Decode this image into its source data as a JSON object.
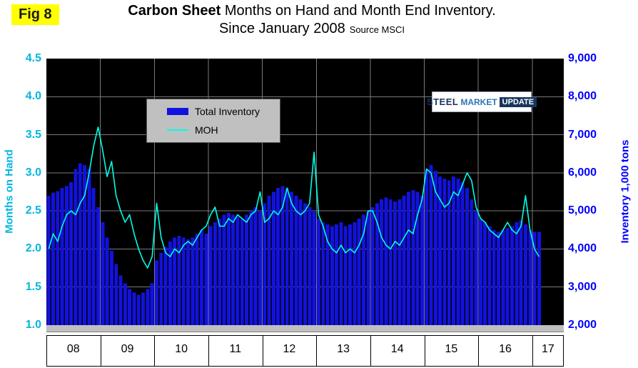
{
  "fig_label": "Fig 8",
  "title": {
    "bold": "Carbon Sheet",
    "rest": " Months on Hand and Month End Inventory.",
    "line2": "Since January 2008",
    "source": "Source MSCI"
  },
  "legend": {
    "inventory": "Total Inventory",
    "moh": "MOH"
  },
  "logo": {
    "part1": "STEEL",
    "part2": "MARKET",
    "part3": "UPDATE"
  },
  "left_axis": {
    "title": "Months on Hand",
    "color": "#00B7DE",
    "ticks": [
      "4.5",
      "4.0",
      "3.5",
      "3.0",
      "2.5",
      "2.0",
      "1.5",
      "1.0"
    ]
  },
  "right_axis": {
    "title": "Inventory 1,000 tons",
    "color": "#0000FF",
    "ticks": [
      "9,000",
      "8,000",
      "7,000",
      "6,000",
      "5,000",
      "4,000",
      "3,000",
      "2,000"
    ]
  },
  "chart_data": {
    "type": "bar",
    "subtype": "combo-bar-line-dual-axis",
    "title": "Carbon Sheet Months on Hand and Month End Inventory. Since January 2008",
    "source": "Source MSCI",
    "x_frequency": "monthly",
    "x_start": "2008-01",
    "x_years": [
      "08",
      "09",
      "10",
      "11",
      "12",
      "13",
      "14",
      "15",
      "16",
      "17"
    ],
    "x_slots": 115,
    "left_ylim": [
      1.0,
      4.5
    ],
    "right_ylim": [
      2000,
      9000
    ],
    "grid": true,
    "legend_position": "upper-left-inside",
    "series": [
      {
        "name": "Total Inventory",
        "type": "bar",
        "axis": "right",
        "units": "1,000 tons",
        "values": [
          5400,
          5480,
          5520,
          5600,
          5650,
          5750,
          6100,
          6250,
          6200,
          6100,
          5600,
          5100,
          4700,
          4300,
          3950,
          3600,
          3300,
          3100,
          2950,
          2850,
          2800,
          2850,
          2950,
          3100,
          3700,
          3900,
          4050,
          4200,
          4300,
          4350,
          4300,
          4250,
          4300,
          4400,
          4500,
          4400,
          4600,
          4700,
          4800,
          4900,
          4950,
          4900,
          4850,
          4800,
          4900,
          5000,
          5100,
          5000,
          5200,
          5400,
          5500,
          5600,
          5650,
          5600,
          5500,
          5400,
          5300,
          5200,
          5100,
          5000,
          4800,
          4700,
          4650,
          4600,
          4650,
          4700,
          4600,
          4650,
          4700,
          4800,
          4900,
          5000,
          5100,
          5200,
          5300,
          5350,
          5300,
          5250,
          5300,
          5400,
          5500,
          5550,
          5500,
          5400,
          6100,
          6200,
          6050,
          5900,
          5850,
          5800,
          5900,
          5850,
          5750,
          5600,
          5300,
          5000,
          4800,
          4700,
          4600,
          4500,
          4450,
          4500,
          4550,
          4600,
          4700,
          4750,
          4650,
          4500,
          4450,
          4450
        ]
      },
      {
        "name": "MOH",
        "type": "line",
        "axis": "left",
        "units": "months",
        "values": [
          2.0,
          2.2,
          2.1,
          2.3,
          2.45,
          2.5,
          2.45,
          2.6,
          2.7,
          3.0,
          3.35,
          3.6,
          3.3,
          2.95,
          3.15,
          2.7,
          2.5,
          2.35,
          2.45,
          2.2,
          2.0,
          1.85,
          1.75,
          1.9,
          2.6,
          2.15,
          1.95,
          1.9,
          2.0,
          1.95,
          2.05,
          2.1,
          2.05,
          2.15,
          2.25,
          2.3,
          2.45,
          2.55,
          2.3,
          2.3,
          2.4,
          2.35,
          2.45,
          2.4,
          2.35,
          2.45,
          2.5,
          2.75,
          2.35,
          2.4,
          2.5,
          2.45,
          2.55,
          2.8,
          2.6,
          2.5,
          2.45,
          2.5,
          2.6,
          3.27,
          2.45,
          2.3,
          2.1,
          2.0,
          1.95,
          2.05,
          1.95,
          2.0,
          1.95,
          2.05,
          2.2,
          2.5,
          2.5,
          2.35,
          2.15,
          2.05,
          2.0,
          2.1,
          2.05,
          2.15,
          2.25,
          2.2,
          2.45,
          2.65,
          3.05,
          3.0,
          2.75,
          2.65,
          2.55,
          2.6,
          2.75,
          2.7,
          2.85,
          3.0,
          2.9,
          2.55,
          2.4,
          2.35,
          2.25,
          2.2,
          2.15,
          2.25,
          2.35,
          2.25,
          2.2,
          2.3,
          2.7,
          2.25,
          2.0,
          1.9
        ]
      }
    ],
    "colors": {
      "bar": "#1212DF",
      "line": "#00FFE5",
      "plot_bg": "#000000",
      "grid": "#7A7A7A",
      "legend_bg": "#C0C0C0",
      "fig_bg": "#FFFF00",
      "floor": "#BFBFBF"
    }
  }
}
